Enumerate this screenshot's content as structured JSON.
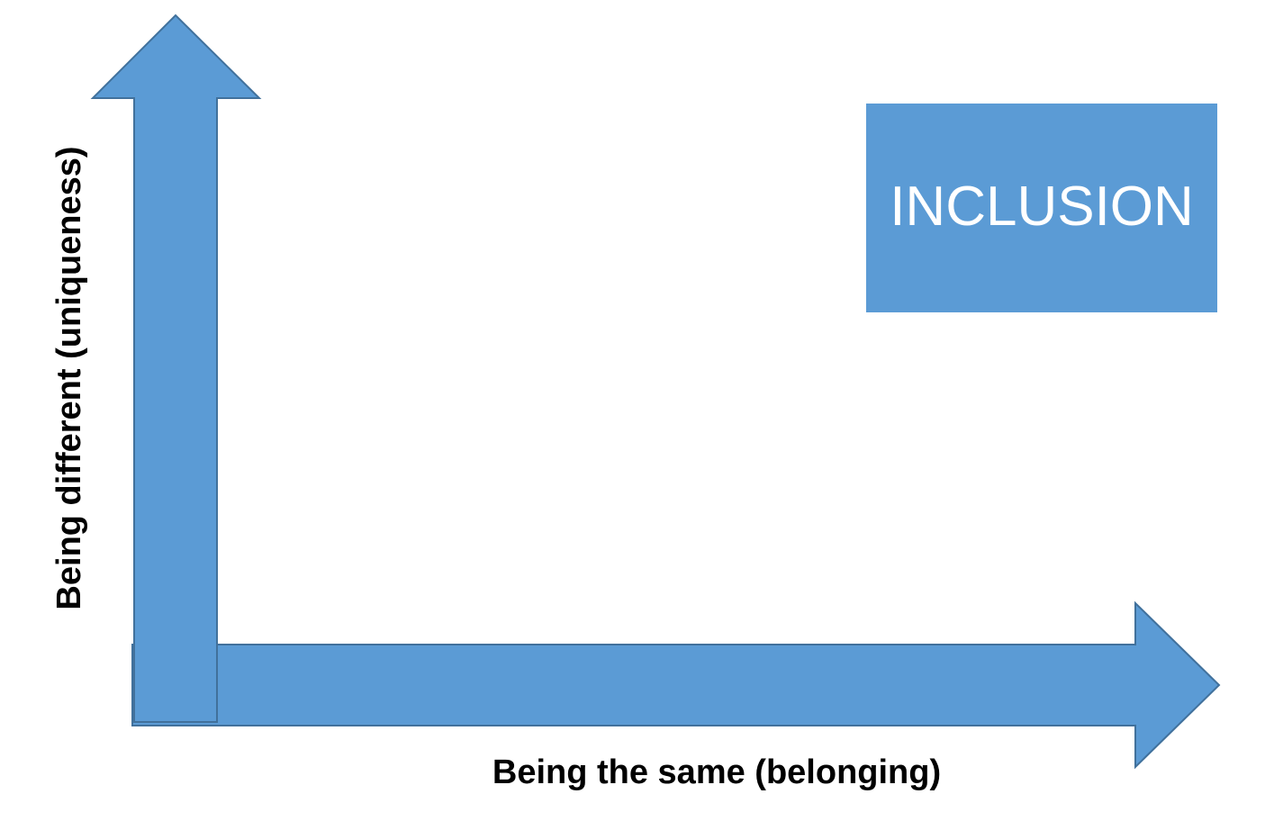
{
  "diagram": {
    "x_axis_label": "Being the same (belonging)",
    "y_axis_label": "Being different (uniqueness)",
    "quadrant_box_label": "INCLUSION"
  },
  "colors": {
    "arrow_fill": "#5b9bd5",
    "arrow_stroke": "#41719c",
    "box_fill": "#5b9bd5",
    "box_text": "#ffffff",
    "label_text": "#000000"
  }
}
